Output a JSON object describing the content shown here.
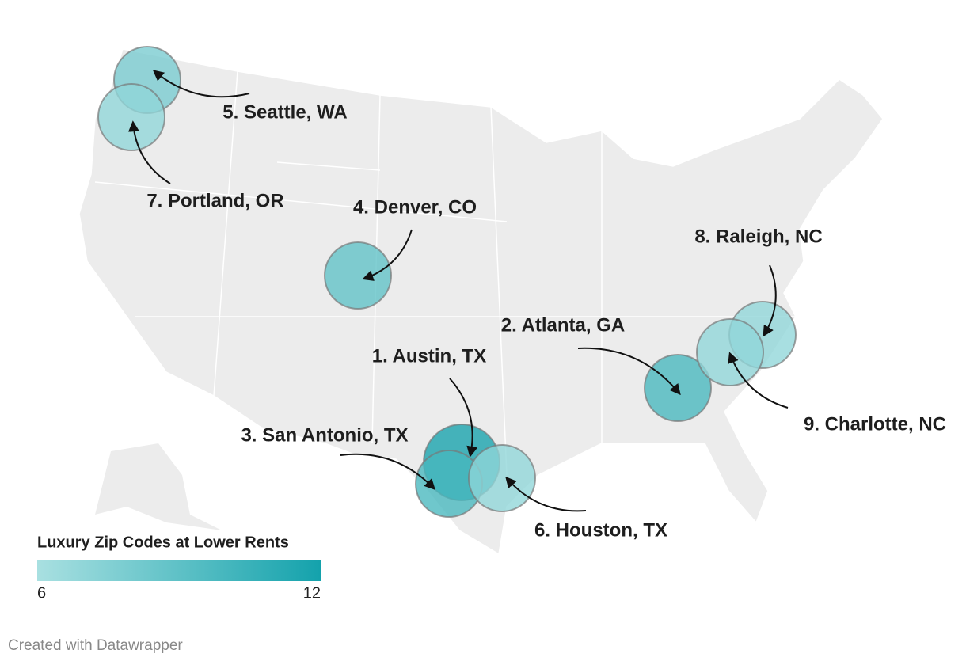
{
  "map": {
    "type": "bubble-map",
    "bubbles": [
      {
        "label": "1. Austin, TX",
        "value": 12
      },
      {
        "label": "2. Atlanta, GA",
        "value": 10
      },
      {
        "label": "3. San Antonio, TX",
        "value": 10
      },
      {
        "label": "4. Denver, CO",
        "value": 9
      },
      {
        "label": "5. Seattle, WA",
        "value": 8
      },
      {
        "label": "6. Houston, TX",
        "value": 7
      },
      {
        "label": "7. Portland, OR",
        "value": 7
      },
      {
        "label": "8. Raleigh, NC",
        "value": 7
      },
      {
        "label": "9. Charlotte, NC",
        "value": 7
      }
    ],
    "legend": {
      "title": "Luxury Zip Codes at Lower Rents",
      "ticks": [
        6,
        12
      ],
      "colors": [
        "#a9e0e1",
        "#14a2ac"
      ]
    }
  },
  "footer": "Created with Datawrapper"
}
